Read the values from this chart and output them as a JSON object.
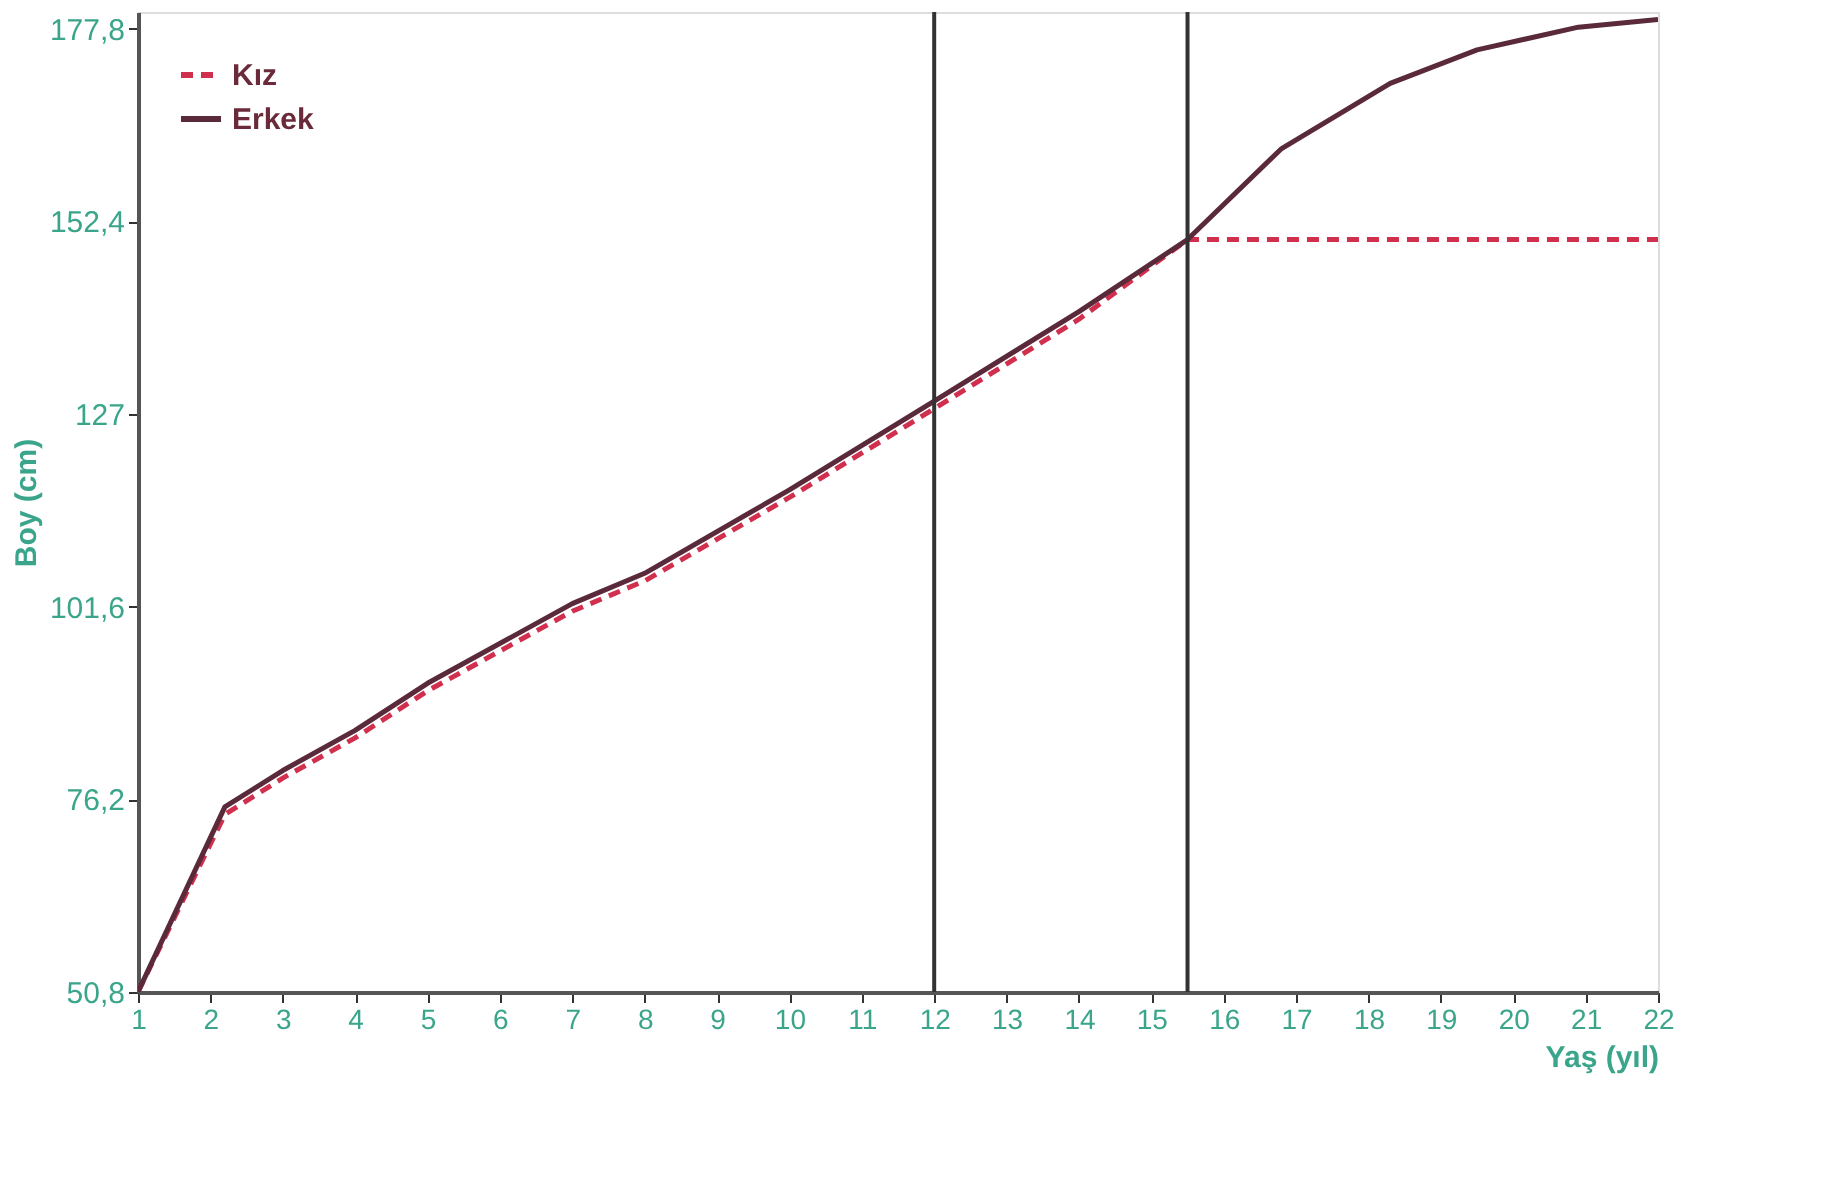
{
  "chart_data": {
    "type": "line",
    "xlabel": "Yaş (yıl)",
    "ylabel": "Boy (cm)",
    "xlim": [
      1,
      22
    ],
    "xticks": [
      1,
      2,
      3,
      4,
      5,
      6,
      7,
      8,
      9,
      10,
      11,
      12,
      13,
      14,
      15,
      16,
      17,
      18,
      19,
      20,
      21,
      22
    ],
    "ylim": [
      50.8,
      180
    ],
    "yticks": [
      {
        "value": 50.8,
        "label": "50,8"
      },
      {
        "value": 76.2,
        "label": "76,2"
      },
      {
        "value": 101.6,
        "label": "101,6"
      },
      {
        "value": 127,
        "label": "127"
      },
      {
        "value": 152.4,
        "label": "152,4"
      },
      {
        "value": 177.8,
        "label": "177,8"
      }
    ],
    "grid": false,
    "legend": "top left",
    "marker": "none",
    "series": [
      {
        "name": "Kız",
        "color": "#d0304e",
        "line_style": "dashed",
        "x": [
          1,
          2.2,
          3,
          4,
          5,
          7,
          8,
          10,
          12,
          14,
          15.5,
          22
        ],
        "values": [
          50.8,
          74.2,
          79,
          84.3,
          90.5,
          101,
          105,
          116,
          127.7,
          139.5,
          150,
          150
        ]
      },
      {
        "name": "Erkek",
        "color": "#5a2a3a",
        "line_style": "solid",
        "x": [
          1,
          2.2,
          3,
          4,
          5,
          7,
          8,
          10,
          12,
          14,
          15.5,
          16.8,
          18.3,
          19.5,
          20.9,
          22
        ],
        "values": [
          50.8,
          75.2,
          80,
          85.3,
          91.5,
          102,
          106,
          117,
          128.7,
          140.5,
          150,
          162,
          170.6,
          175,
          178,
          179
        ]
      }
    ],
    "ref_lines": [
      {
        "axis": "x",
        "value": 12,
        "label": null,
        "color": "#333333"
      },
      {
        "axis": "x",
        "value": 15.5,
        "label": null,
        "color": "#333333"
      }
    ]
  }
}
